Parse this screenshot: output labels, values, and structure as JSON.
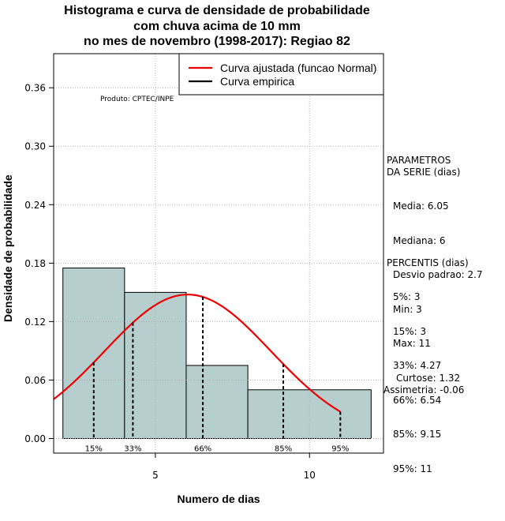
{
  "chart_data": {
    "type": "bar",
    "title": [
      "Histograma e curva de densidade de probabilidade",
      "com chuva acima de 10 mm",
      "no mes de novembro (1998-2017): Regiao 82"
    ],
    "xlabel": "Numero de dias",
    "ylabel": "Densidade de probabilidade",
    "xlim": [
      1.7,
      12.4
    ],
    "ylim": [
      -0.015,
      0.395
    ],
    "xticks": [
      5,
      10
    ],
    "yticks": [
      0.0,
      0.06,
      0.12,
      0.18,
      0.24,
      0.3,
      0.36
    ],
    "ytick_labels": [
      "0.00",
      "0.06",
      "0.12",
      "0.18",
      "0.24",
      "0.30",
      "0.36"
    ],
    "grid": true,
    "bars": [
      {
        "x0": 2,
        "x1": 4,
        "value": 0.175
      },
      {
        "x0": 4,
        "x1": 6,
        "value": 0.15
      },
      {
        "x0": 6,
        "x1": 8,
        "value": 0.075
      },
      {
        "x0": 8,
        "x1": 12,
        "value": 0.05
      }
    ],
    "bar_color": "#b7cecf",
    "normal_curve": {
      "mean": 6.05,
      "sd": 2.7,
      "color": "#ee0000",
      "x_range": [
        1.7,
        11
      ]
    },
    "percentile_lines": [
      {
        "label": "15%",
        "x": 3
      },
      {
        "label": "33%",
        "x": 4.27
      },
      {
        "label": "66%",
        "x": 6.54
      },
      {
        "label": "85%",
        "x": 9.15
      },
      {
        "label": "95%",
        "x": 11
      }
    ],
    "legend": {
      "position": "top-right",
      "entries": [
        {
          "label": "Curva ajustada (funcao Normal)",
          "color": "#ee0000"
        },
        {
          "label": "Curva empirica",
          "color": "#000000"
        }
      ]
    },
    "product_label": "Produto: CPTEC/INPE"
  },
  "stats_block": {
    "parametros_title": "PARAMETROS\nDA SERIE (dias)",
    "parametros": [
      "Media: 6.05",
      "Mediana: 6",
      "Desvio padrao: 2.7",
      "Min: 3",
      "Max: 11"
    ],
    "percentis_title": "PERCENTIS (dias)",
    "percentis": [
      "5%: 3",
      "15%: 3",
      "33%: 4.27",
      "66%: 6.54",
      "85%: 9.15",
      "95%: 11"
    ],
    "curtose": "Curtose: 1.32",
    "assimetria": "Assimetria: -0.06"
  }
}
